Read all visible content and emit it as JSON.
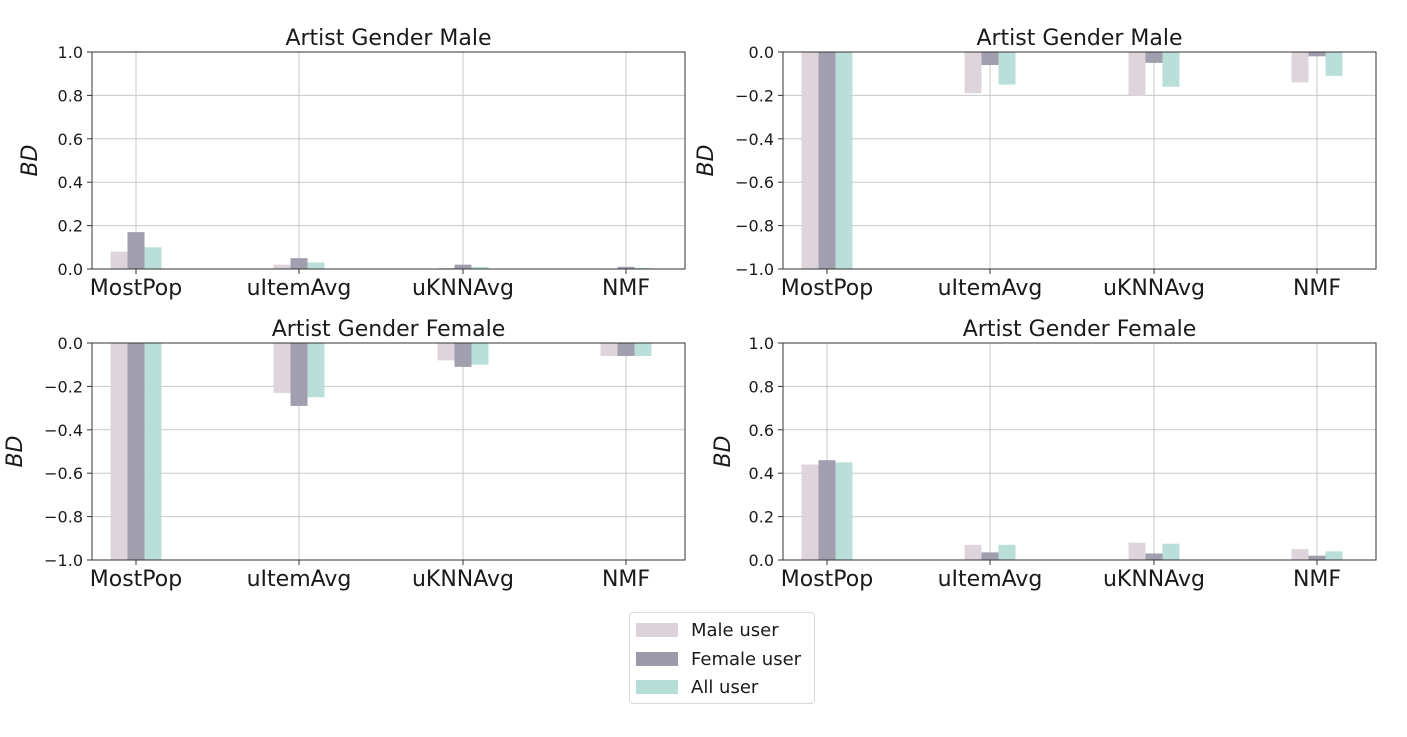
{
  "colors": {
    "male": "#dcd2da",
    "female": "#9c9aa9",
    "all": "#b5ddd6",
    "grid": "#c8c8c8",
    "axis": "#333333"
  },
  "legend": {
    "placement": "bottom-center",
    "items": [
      {
        "label": "Male user",
        "color": "#dcd2da"
      },
      {
        "label": "Female user",
        "color": "#9c9aa9"
      },
      {
        "label": "All user",
        "color": "#b5ddd6"
      }
    ]
  },
  "chart_data": [
    {
      "type": "bar",
      "title": "Artist Gender Male",
      "ylabel": "BD",
      "ylim": [
        0,
        1.0
      ],
      "yticks": [
        "0.0",
        "0.2",
        "0.4",
        "0.6",
        "0.8",
        "1.0"
      ],
      "categories": [
        "MostPop",
        "uItemAvg",
        "uKNNAvg",
        "NMF"
      ],
      "grid": true,
      "series": [
        {
          "name": "Male user",
          "values": [
            0.08,
            0.02,
            0.005,
            0.003
          ]
        },
        {
          "name": "Female user",
          "values": [
            0.17,
            0.05,
            0.02,
            0.01
          ]
        },
        {
          "name": "All user",
          "values": [
            0.1,
            0.03,
            0.01,
            0.005
          ]
        }
      ]
    },
    {
      "type": "bar",
      "title": "Artist Gender Male",
      "ylabel": "BD",
      "ylim": [
        -1.0,
        0.0
      ],
      "yticks": [
        "−1.0",
        "−0.8",
        "−0.6",
        "−0.4",
        "−0.2",
        "0.0"
      ],
      "categories": [
        "MostPop",
        "uItemAvg",
        "uKNNAvg",
        "NMF"
      ],
      "grid": true,
      "series": [
        {
          "name": "Male user",
          "values": [
            -1.0,
            -0.19,
            -0.2,
            -0.14
          ]
        },
        {
          "name": "Female user",
          "values": [
            -1.0,
            -0.06,
            -0.05,
            -0.02
          ]
        },
        {
          "name": "All user",
          "values": [
            -1.0,
            -0.15,
            -0.16,
            -0.11
          ]
        }
      ]
    },
    {
      "type": "bar",
      "title": "Artist Gender Female",
      "ylabel": "BD",
      "ylim": [
        -1.0,
        0.0
      ],
      "yticks": [
        "−1.0",
        "−0.8",
        "−0.6",
        "−0.4",
        "−0.2",
        "0.0"
      ],
      "categories": [
        "MostPop",
        "uItemAvg",
        "uKNNAvg",
        "NMF"
      ],
      "grid": true,
      "series": [
        {
          "name": "Male user",
          "values": [
            -1.0,
            -0.23,
            -0.08,
            -0.06
          ]
        },
        {
          "name": "Female user",
          "values": [
            -1.0,
            -0.29,
            -0.11,
            -0.06
          ]
        },
        {
          "name": "All user",
          "values": [
            -1.0,
            -0.25,
            -0.1,
            -0.06
          ]
        }
      ]
    },
    {
      "type": "bar",
      "title": "Artist Gender Female",
      "ylabel": "BD",
      "ylim": [
        0,
        1.0
      ],
      "yticks": [
        "0.0",
        "0.2",
        "0.4",
        "0.6",
        "0.8",
        "1.0"
      ],
      "categories": [
        "MostPop",
        "uItemAvg",
        "uKNNAvg",
        "NMF"
      ],
      "grid": true,
      "series": [
        {
          "name": "Male user",
          "values": [
            0.44,
            0.07,
            0.08,
            0.05
          ]
        },
        {
          "name": "Female user",
          "values": [
            0.46,
            0.035,
            0.03,
            0.02
          ]
        },
        {
          "name": "All user",
          "values": [
            0.45,
            0.07,
            0.075,
            0.04
          ]
        }
      ]
    }
  ]
}
